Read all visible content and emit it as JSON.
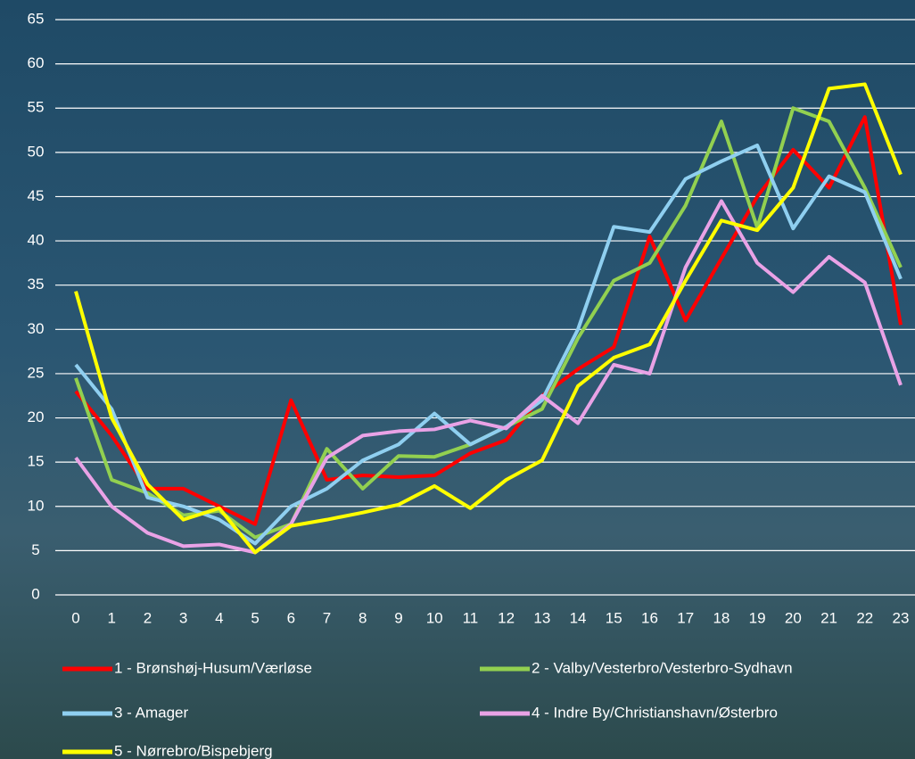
{
  "chart_data": {
    "type": "line",
    "categories": [
      "0",
      "1",
      "2",
      "3",
      "4",
      "5",
      "6",
      "7",
      "8",
      "9",
      "10",
      "11",
      "12",
      "13",
      "14",
      "15",
      "16",
      "17",
      "18",
      "19",
      "20",
      "21",
      "22",
      "23"
    ],
    "series": [
      {
        "name": "1 - Brønshøj-Husum/Værløse",
        "color": "#ff0000",
        "values": [
          23,
          18,
          12,
          12,
          10,
          8,
          22,
          13,
          13.5,
          13.3,
          13.5,
          16,
          17.5,
          22.5,
          25.5,
          28,
          40.5,
          31,
          38,
          45,
          50.3,
          46,
          54,
          30.5
        ]
      },
      {
        "name": "2 - Valby/Vesterbro/Vesterbro-Sydhavn",
        "color": "#92d050",
        "values": [
          24.5,
          13,
          11.5,
          9,
          9.5,
          6.5,
          8,
          16.5,
          12,
          15.7,
          15.6,
          17,
          19,
          21,
          29,
          35.5,
          37.5,
          44,
          53.5,
          41.5,
          55,
          53.5,
          46,
          37
        ]
      },
      {
        "name": "3 - Amager",
        "color": "#8fcff0",
        "values": [
          26,
          21,
          11,
          10,
          8.5,
          5.8,
          10,
          12,
          15.2,
          17,
          20.5,
          17,
          19,
          22,
          30,
          41.6,
          41,
          47,
          49,
          50.8,
          41.4,
          47.3,
          45.5,
          35.7
        ]
      },
      {
        "name": "4 - Indre By/Christianshavn/Østerbro",
        "color": "#e9a2e6",
        "values": [
          15.5,
          10,
          7,
          5.5,
          5.7,
          4.8,
          8,
          15.5,
          18,
          18.5,
          18.7,
          19.7,
          18.8,
          22.5,
          19.4,
          26,
          25,
          37,
          44.5,
          37.5,
          34.2,
          38.2,
          35.3,
          23.7
        ]
      },
      {
        "name": "5 - Nørrebro/Bispebjerg",
        "color": "#ffff00",
        "values": [
          34.3,
          20,
          12.5,
          8.5,
          9.8,
          4.8,
          7.8,
          8.5,
          9.3,
          10.2,
          12.3,
          9.8,
          13,
          15.2,
          23.6,
          26.8,
          28.3,
          35.5,
          42.3,
          41.2,
          46,
          57.2,
          57.7,
          47.5
        ]
      }
    ],
    "ylim": [
      0,
      65
    ],
    "yticks": [
      0,
      5,
      10,
      15,
      20,
      25,
      30,
      35,
      40,
      45,
      50,
      55,
      60,
      65
    ],
    "grid": true
  }
}
